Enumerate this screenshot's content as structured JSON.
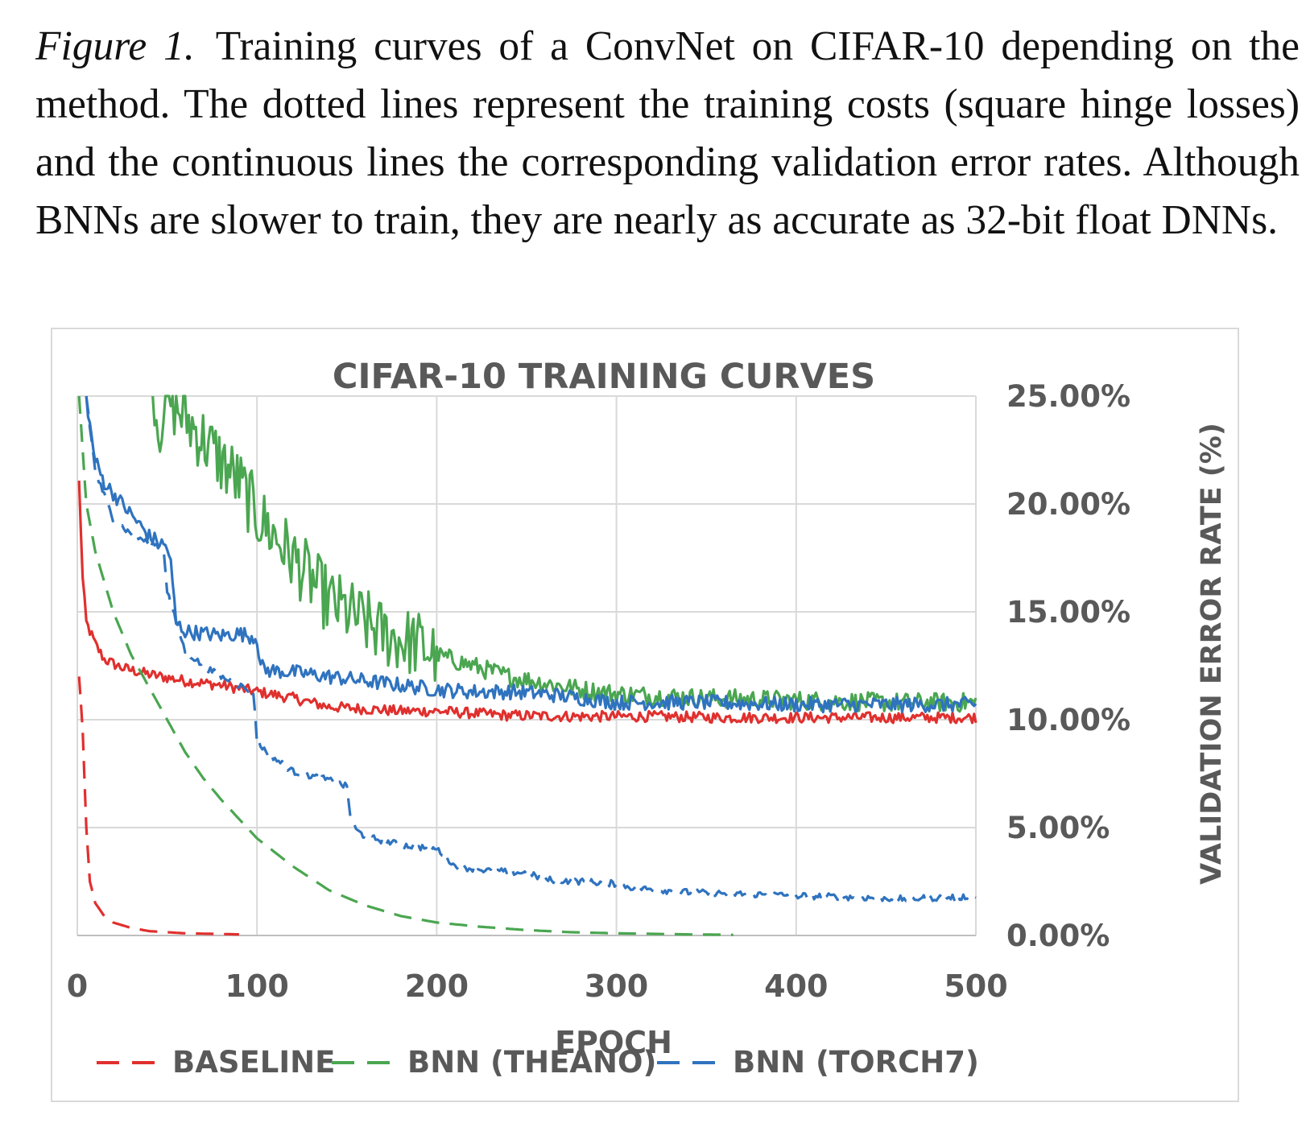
{
  "caption": {
    "label": "Figure 1.",
    "text": "Training curves of a ConvNet on CIFAR-10 depending on the method. The dotted lines represent the training costs (square hinge losses) and the continuous lines the corresponding validation error rates. Although BNNs are slower to train, they are nearly as accurate as 32-bit float DNNs."
  },
  "colors": {
    "baseline": "#e0302e",
    "theano": "#4aa650",
    "torch7": "#2f73bf",
    "grid": "#d9d9d9",
    "axis_text": "#595959"
  },
  "chart_data": {
    "type": "line",
    "title": "CIFAR-10 TRAINING CURVES",
    "xlabel": "EPOCH",
    "ylabel": "VALIDATION ERROR RATE (%)",
    "xlim": [
      0,
      500
    ],
    "ylim": [
      0,
      25
    ],
    "x_ticks": [
      "0",
      "100",
      "200",
      "300",
      "400",
      "500"
    ],
    "y_ticks": [
      "0.00%",
      "5.00%",
      "10.00%",
      "15.00%",
      "20.00%",
      "25.00%"
    ],
    "y_axis_side": "right",
    "grid": true,
    "legend_position": "bottom",
    "legend": [
      "BASELINE",
      "BNN (THEANO)",
      "BNN (TORCH7)"
    ],
    "series": [
      {
        "name": "BASELINE",
        "kind": "validation",
        "style": "solid",
        "points": [
          [
            1,
            21
          ],
          [
            3,
            16.5
          ],
          [
            5,
            14.5
          ],
          [
            10,
            13.5
          ],
          [
            15,
            12.8
          ],
          [
            25,
            12.4
          ],
          [
            40,
            12.1
          ],
          [
            60,
            11.8
          ],
          [
            80,
            11.6
          ],
          [
            100,
            11.3
          ],
          [
            120,
            11.0
          ],
          [
            140,
            10.6
          ],
          [
            160,
            10.5
          ],
          [
            180,
            10.4
          ],
          [
            200,
            10.4
          ],
          [
            240,
            10.2
          ],
          [
            280,
            10.15
          ],
          [
            320,
            10.15
          ],
          [
            360,
            10.1
          ],
          [
            400,
            10.1
          ],
          [
            450,
            10.1
          ],
          [
            500,
            10.1
          ]
        ]
      },
      {
        "name": "BASELINE",
        "kind": "training_cost",
        "style": "dashed",
        "points": [
          [
            1,
            12
          ],
          [
            3,
            9.5
          ],
          [
            5,
            5
          ],
          [
            7,
            2.5
          ],
          [
            10,
            1.5
          ],
          [
            15,
            0.9
          ],
          [
            20,
            0.6
          ],
          [
            30,
            0.35
          ],
          [
            40,
            0.2
          ],
          [
            60,
            0.1
          ],
          [
            90,
            0.05
          ]
        ]
      },
      {
        "name": "BNN (THEANO)",
        "kind": "validation",
        "style": "solid",
        "points": [
          [
            42,
            26
          ],
          [
            45,
            23.5
          ],
          [
            50,
            25
          ],
          [
            60,
            24
          ],
          [
            70,
            23
          ],
          [
            80,
            22
          ],
          [
            90,
            21
          ],
          [
            100,
            19.5
          ],
          [
            110,
            18.5
          ],
          [
            120,
            17.5
          ],
          [
            130,
            16.5
          ],
          [
            140,
            15.5
          ],
          [
            150,
            15
          ],
          [
            160,
            14.5
          ],
          [
            170,
            14
          ],
          [
            180,
            13.7
          ],
          [
            190,
            13.5
          ],
          [
            200,
            13
          ],
          [
            220,
            12.5
          ],
          [
            240,
            12
          ],
          [
            260,
            11.7
          ],
          [
            280,
            11.4
          ],
          [
            300,
            11.2
          ],
          [
            350,
            11.0
          ],
          [
            400,
            10.9
          ],
          [
            450,
            10.8
          ],
          [
            500,
            10.8
          ]
        ]
      },
      {
        "name": "BNN (THEANO)",
        "kind": "training_cost",
        "style": "dashed",
        "points": [
          [
            1,
            25
          ],
          [
            5,
            20
          ],
          [
            10,
            17.8
          ],
          [
            20,
            15
          ],
          [
            30,
            13
          ],
          [
            40,
            11.5
          ],
          [
            50,
            10
          ],
          [
            60,
            8.5
          ],
          [
            70,
            7.3
          ],
          [
            80,
            6.3
          ],
          [
            90,
            5.4
          ],
          [
            100,
            4.5
          ],
          [
            120,
            3.2
          ],
          [
            140,
            2.1
          ],
          [
            160,
            1.4
          ],
          [
            180,
            0.9
          ],
          [
            200,
            0.6
          ],
          [
            225,
            0.4
          ],
          [
            250,
            0.25
          ],
          [
            275,
            0.15
          ],
          [
            300,
            0.1
          ],
          [
            340,
            0.05
          ],
          [
            365,
            0.03
          ]
        ]
      },
      {
        "name": "BNN (TORCH7)",
        "kind": "validation",
        "style": "solid",
        "points": [
          [
            5,
            25
          ],
          [
            8,
            23
          ],
          [
            10,
            22
          ],
          [
            15,
            21
          ],
          [
            20,
            20.5
          ],
          [
            25,
            20
          ],
          [
            30,
            19.5
          ],
          [
            40,
            18.5
          ],
          [
            50,
            18
          ],
          [
            52,
            17.2
          ],
          [
            55,
            14.5
          ],
          [
            60,
            14.1
          ],
          [
            70,
            14
          ],
          [
            80,
            13.9
          ],
          [
            90,
            14
          ],
          [
            100,
            13.8
          ],
          [
            102,
            12.5
          ],
          [
            105,
            12.3
          ],
          [
            120,
            12.2
          ],
          [
            140,
            12.0
          ],
          [
            160,
            11.8
          ],
          [
            180,
            11.6
          ],
          [
            200,
            11.4
          ],
          [
            220,
            11.3
          ],
          [
            240,
            11.3
          ],
          [
            260,
            11.2
          ],
          [
            280,
            11.0
          ],
          [
            300,
            10.8
          ],
          [
            350,
            10.8
          ],
          [
            400,
            10.7
          ],
          [
            450,
            10.7
          ],
          [
            500,
            10.7
          ]
        ]
      },
      {
        "name": "BNN (TORCH7)",
        "kind": "training_cost",
        "style": "dashed",
        "points": [
          [
            5,
            25
          ],
          [
            10,
            21.5
          ],
          [
            20,
            19.3
          ],
          [
            30,
            18.6
          ],
          [
            40,
            18.2
          ],
          [
            48,
            18
          ],
          [
            50,
            16
          ],
          [
            55,
            14.5
          ],
          [
            60,
            13.2
          ],
          [
            70,
            12.5
          ],
          [
            80,
            12.0
          ],
          [
            90,
            11.6
          ],
          [
            98,
            11.3
          ],
          [
            100,
            9
          ],
          [
            103,
            8.7
          ],
          [
            110,
            8.2
          ],
          [
            120,
            7.6
          ],
          [
            130,
            7.4
          ],
          [
            140,
            7.2
          ],
          [
            150,
            6.9
          ],
          [
            152,
            5.5
          ],
          [
            155,
            4.9
          ],
          [
            160,
            4.6
          ],
          [
            180,
            4.2
          ],
          [
            200,
            4.0
          ],
          [
            205,
            3.7
          ],
          [
            210,
            3.2
          ],
          [
            230,
            3.0
          ],
          [
            250,
            2.9
          ],
          [
            260,
            2.6
          ],
          [
            280,
            2.5
          ],
          [
            300,
            2.4
          ],
          [
            310,
            2.2
          ],
          [
            340,
            2.0
          ],
          [
            380,
            1.9
          ],
          [
            420,
            1.8
          ],
          [
            460,
            1.7
          ],
          [
            500,
            1.8
          ]
        ]
      }
    ]
  }
}
